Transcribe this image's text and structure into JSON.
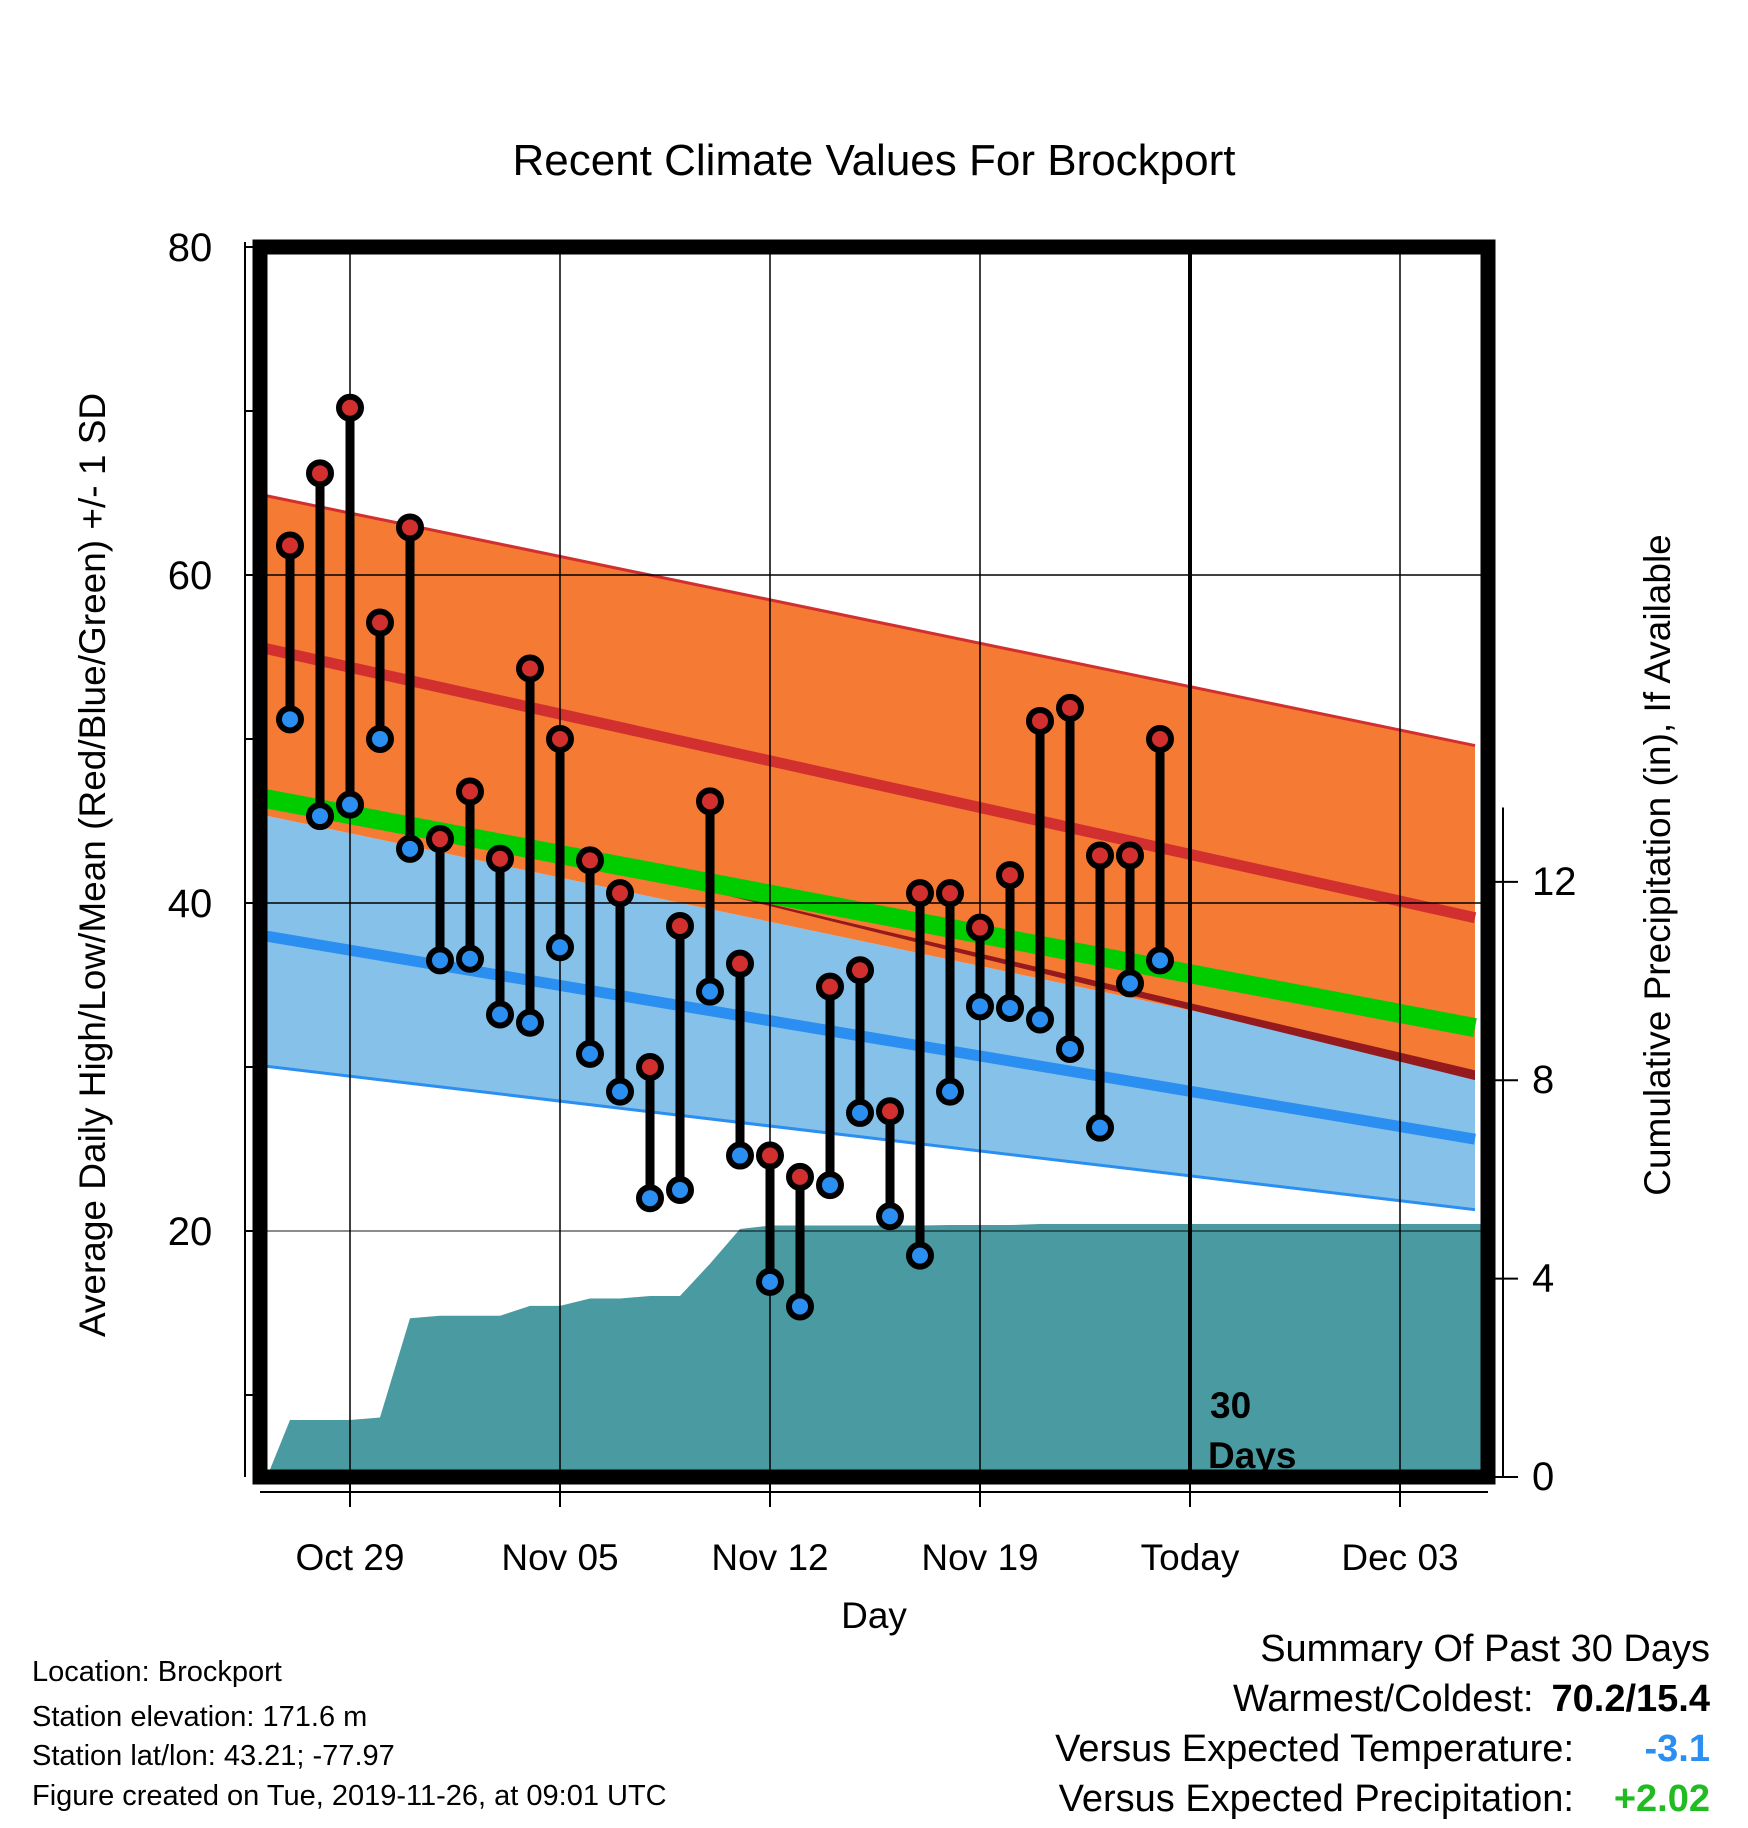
{
  "chart_data": {
    "type": "line",
    "title": "Recent Climate Values For Brockport",
    "xlabel": "Day",
    "ylabel": "Average Daily High/Low/Mean (Red/Blue/Green) +/- 1 SD",
    "y2label": "Cumulative Precipitation (in), If Available",
    "x_ticks": [
      "Oct 29",
      "Nov 05",
      "Nov 12",
      "Nov 19",
      "Today",
      "Dec 03"
    ],
    "today_marker": {
      "label_line1": "30",
      "label_line2": "Days"
    },
    "y_ticks": [
      "20",
      "40",
      "60",
      "80"
    ],
    "ylim": [
      5,
      80
    ],
    "y2_ticks": [
      "0",
      "4",
      "8",
      "12"
    ],
    "y2lim": [
      0,
      24.8
    ],
    "normals": {
      "day_range": [
        -3.5,
        37.5
      ],
      "high_mean": [
        55.8,
        39.1
      ],
      "high_plus_sd": [
        65.1,
        49.6
      ],
      "mean_mean": [
        46.6,
        32.4
      ],
      "low_mean": [
        38.2,
        25.6
      ],
      "low_minus_sd": [
        30.2,
        21.3
      ],
      "high_minus_sd_start": 45.6
    },
    "series": [
      {
        "name": "High",
        "color": "#d2302f",
        "days": [
          -2,
          -1,
          0,
          1,
          2,
          3,
          4,
          5,
          6,
          7,
          8,
          9,
          10,
          11,
          12,
          13,
          14,
          15,
          16,
          17,
          18,
          19,
          20,
          21,
          22,
          23,
          24,
          25,
          26,
          27
        ],
        "values": [
          61.8,
          66.2,
          70.2,
          57.1,
          62.9,
          43.9,
          46.8,
          42.7,
          54.3,
          50.0,
          42.6,
          40.6,
          30.0,
          38.6,
          46.2,
          36.3,
          24.6,
          23.3,
          34.9,
          35.9,
          27.3,
          40.6,
          40.6,
          38.5,
          41.7,
          51.1,
          51.9,
          42.9,
          42.9,
          50.0
        ]
      },
      {
        "name": "Low",
        "color": "#2a8ff0",
        "days": [
          -2,
          -1,
          0,
          1,
          2,
          3,
          4,
          5,
          6,
          7,
          8,
          9,
          10,
          11,
          12,
          13,
          14,
          15,
          16,
          17,
          18,
          19,
          20,
          21,
          22,
          23,
          24,
          25,
          26,
          27
        ],
        "values": [
          51.2,
          45.3,
          46.0,
          50.0,
          43.3,
          36.5,
          36.6,
          33.2,
          32.7,
          37.3,
          30.8,
          28.5,
          22.0,
          22.5,
          34.6,
          24.6,
          16.9,
          15.4,
          22.8,
          27.2,
          20.9,
          18.5,
          28.5,
          33.7,
          33.6,
          32.9,
          31.1,
          26.3,
          35.1,
          36.5
        ]
      }
    ],
    "precipitation": {
      "name": "Cumulative Precipitation",
      "color": "#4a9aa2",
      "days": [
        -2.7,
        -2,
        0,
        1,
        2,
        3,
        4,
        5,
        6,
        7,
        8,
        9,
        10,
        11,
        12,
        13,
        14,
        15,
        16,
        17,
        18,
        19,
        20,
        21,
        22,
        23,
        24,
        25,
        26,
        27,
        27.5
      ],
      "values": [
        0.1,
        1.15,
        1.15,
        1.2,
        3.2,
        3.25,
        3.25,
        3.25,
        3.45,
        3.45,
        3.6,
        3.6,
        3.65,
        3.65,
        4.3,
        5.0,
        5.07,
        5.07,
        5.07,
        5.07,
        5.07,
        5.07,
        5.08,
        5.08,
        5.08,
        5.1,
        5.1,
        5.1,
        5.1,
        5.1,
        5.1
      ]
    }
  },
  "footer": {
    "location": "Location: Brockport",
    "elevation": "Station elevation: 171.6 m",
    "latlon": "Station lat/lon: 43.21; -77.97",
    "created": "Figure created on Tue, 2019-11-26, at 09:01 UTC"
  },
  "summary": {
    "title": "Summary Of Past 30 Days",
    "warmest_label": "Warmest/Coldest:",
    "warmest_value": "70.2/15.4",
    "temp_label": "Versus Expected Temperature:",
    "temp_value": "-3.1",
    "temp_color": "#2a8ff0",
    "precip_label": "Versus Expected Precipitation:",
    "precip_value": "+2.02",
    "precip_color": "#22bb22"
  },
  "colors": {
    "high_band": "#f57a34",
    "high_line": "#d2302f",
    "low_band": "#85c1e8",
    "low_line": "#2a8ff0",
    "mean_line": "#00cc00",
    "above_mean": "#951a1e",
    "precip_fill": "#4a9aa2",
    "marker_high": "#d2302f",
    "marker_low": "#2a8ff0"
  }
}
